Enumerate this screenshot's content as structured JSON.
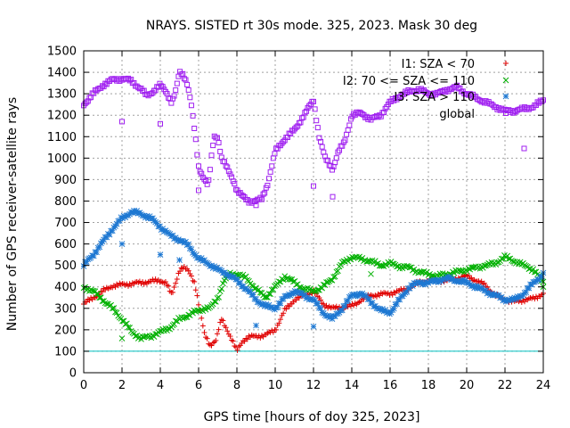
{
  "chart_data": {
    "type": "scatter",
    "title": "NRAYS. SISTED rt 30s mode. 325, 2023. Mask 30 deg",
    "xlabel": "GPS time [hours of doy 325, 2023]",
    "ylabel": "Number of GPS receiver-satellite rays",
    "xlim": [
      0,
      24
    ],
    "ylim": [
      0,
      1500
    ],
    "xticks": [
      0,
      2,
      4,
      6,
      8,
      10,
      12,
      14,
      16,
      18,
      20,
      22,
      24
    ],
    "yticks": [
      0,
      100,
      200,
      300,
      400,
      500,
      600,
      700,
      800,
      900,
      1000,
      1100,
      1200,
      1300,
      1400,
      1500
    ],
    "grid": true,
    "legend_position": "top-right",
    "reference_line": {
      "y": 100,
      "color": "#00c0c0"
    },
    "series": [
      {
        "name": "I1: SZA < 70",
        "marker": "+",
        "color": "#e00000",
        "x": [
          0,
          0.5,
          1,
          1.5,
          2,
          2.5,
          3,
          3.5,
          4,
          4.3,
          4.6,
          4.8,
          5,
          5.2,
          5.5,
          5.8,
          6,
          6.3,
          6.6,
          6.9,
          7.2,
          7.5,
          7.8,
          8,
          8.3,
          8.6,
          9,
          9.5,
          10,
          10.5,
          11,
          11.5,
          12,
          12.5,
          13,
          13.5,
          14,
          14.5,
          15,
          15.5,
          16,
          16.5,
          17,
          17.5,
          18,
          18.5,
          19,
          19.5,
          20,
          20.5,
          21,
          21.5,
          22,
          22.5,
          23,
          23.5,
          24
        ],
        "y": [
          320,
          350,
          380,
          405,
          410,
          415,
          420,
          425,
          430,
          420,
          360,
          420,
          480,
          490,
          470,
          420,
          320,
          180,
          130,
          150,
          250,
          200,
          140,
          100,
          150,
          165,
          170,
          175,
          200,
          290,
          340,
          360,
          380,
          320,
          300,
          305,
          310,
          340,
          360,
          365,
          370,
          380,
          395,
          420,
          430,
          430,
          430,
          440,
          450,
          430,
          405,
          360,
          340,
          330,
          340,
          345,
          370
        ]
      },
      {
        "name": "I2: 70 <= SZA <= 110",
        "marker": "x",
        "color": "#00b000",
        "x": [
          0,
          0.5,
          1,
          1.5,
          2,
          2.5,
          3,
          3.5,
          4,
          4.5,
          5,
          5.5,
          6,
          6.3,
          6.6,
          7,
          7.3,
          7.6,
          8,
          8.5,
          9,
          9.5,
          10,
          10.5,
          11,
          11.5,
          12,
          12.5,
          13,
          13.5,
          14,
          14.5,
          15,
          15.5,
          16,
          16.5,
          17,
          17.5,
          18,
          18.5,
          19,
          19.5,
          20,
          20.5,
          21,
          21.5,
          22,
          22.5,
          23,
          23.5,
          24
        ],
        "y": [
          400,
          380,
          340,
          300,
          250,
          190,
          160,
          170,
          190,
          210,
          250,
          270,
          290,
          300,
          300,
          350,
          420,
          460,
          460,
          440,
          390,
          350,
          400,
          450,
          420,
          390,
          380,
          400,
          440,
          510,
          540,
          530,
          520,
          500,
          510,
          495,
          490,
          470,
          460,
          450,
          460,
          470,
          480,
          490,
          500,
          510,
          540,
          520,
          500,
          480,
          420
        ]
      },
      {
        "name": "I3: SZA > 110",
        "marker": "*",
        "color": "#1e78d2",
        "x": [
          0,
          0.5,
          1,
          1.5,
          2,
          2.5,
          3,
          3.5,
          4,
          4.5,
          5,
          5.5,
          6,
          6.5,
          7,
          7.5,
          8,
          8.5,
          9,
          9.5,
          10,
          10.5,
          11,
          11.5,
          12,
          12.5,
          13,
          13.5,
          14,
          14.5,
          15,
          15.5,
          16,
          16.5,
          17,
          17.5,
          18,
          18.5,
          19,
          19.5,
          20,
          20.5,
          21,
          21.5,
          22,
          22.5,
          23,
          23.5,
          24
        ],
        "y": [
          500,
          550,
          610,
          670,
          720,
          750,
          740,
          720,
          680,
          640,
          620,
          590,
          530,
          510,
          480,
          460,
          430,
          390,
          340,
          310,
          300,
          350,
          380,
          360,
          340,
          280,
          250,
          300,
          360,
          370,
          330,
          290,
          280,
          340,
          400,
          420,
          420,
          430,
          440,
          430,
          420,
          400,
          380,
          360,
          340,
          340,
          370,
          420,
          460
        ]
      },
      {
        "name": "global",
        "marker": "square",
        "color": "#a020f0",
        "x": [
          0,
          0.5,
          1,
          1.5,
          2,
          2.5,
          3,
          3.3,
          3.6,
          4,
          4.3,
          4.6,
          4.8,
          5,
          5.2,
          5.4,
          5.6,
          5.8,
          6,
          6.2,
          6.5,
          6.8,
          7,
          7.2,
          7.5,
          7.8,
          8,
          8.3,
          8.6,
          9,
          9.3,
          9.6,
          10,
          10.5,
          11,
          11.5,
          12,
          12.3,
          12.6,
          13,
          13.3,
          13.6,
          14,
          14.5,
          15,
          15.5,
          16,
          16.5,
          17,
          17.5,
          18,
          18.5,
          19,
          19.5,
          20,
          20.5,
          21,
          21.5,
          22,
          22.5,
          23,
          23.5,
          24
        ],
        "y": [
          1250,
          1300,
          1340,
          1365,
          1370,
          1360,
          1320,
          1290,
          1310,
          1340,
          1310,
          1260,
          1310,
          1400,
          1390,
          1350,
          1260,
          1120,
          960,
          920,
          870,
          1100,
          1100,
          1000,
          950,
          900,
          850,
          820,
          800,
          800,
          810,
          880,
          1030,
          1090,
          1130,
          1200,
          1270,
          1100,
          1000,
          950,
          1030,
          1070,
          1200,
          1210,
          1180,
          1200,
          1260,
          1290,
          1310,
          1320,
          1300,
          1300,
          1320,
          1330,
          1300,
          1280,
          1260,
          1240,
          1220,
          1220,
          1230,
          1240,
          1270
        ]
      }
    ],
    "outliers": [
      {
        "series": "I2: 70 <= SZA <= 110",
        "x": 2,
        "y": 160
      },
      {
        "series": "I2: 70 <= SZA <= 110",
        "x": 15,
        "y": 460
      },
      {
        "series": "I2: 70 <= SZA <= 110",
        "x": 24,
        "y": 400
      },
      {
        "series": "I3: SZA > 110",
        "x": 2,
        "y": 600
      },
      {
        "series": "I3: SZA > 110",
        "x": 4,
        "y": 550
      },
      {
        "series": "I3: SZA > 110",
        "x": 5,
        "y": 525
      },
      {
        "series": "I3: SZA > 110",
        "x": 9,
        "y": 220
      },
      {
        "series": "I3: SZA > 110",
        "x": 12,
        "y": 215
      },
      {
        "series": "global",
        "x": 2,
        "y": 1170
      },
      {
        "series": "global",
        "x": 4,
        "y": 1160
      },
      {
        "series": "global",
        "x": 6,
        "y": 850
      },
      {
        "series": "global",
        "x": 9,
        "y": 780
      },
      {
        "series": "global",
        "x": 12,
        "y": 870
      },
      {
        "series": "global",
        "x": 13,
        "y": 820
      },
      {
        "series": "global",
        "x": 23,
        "y": 1045
      }
    ]
  }
}
